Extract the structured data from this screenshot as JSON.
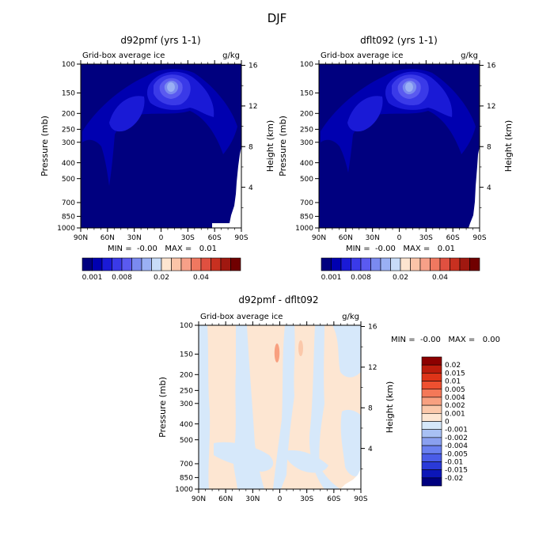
{
  "page": {
    "title": "DJF"
  },
  "axis_common": {
    "x_ticks": [
      "90N",
      "60N",
      "30N",
      "0",
      "30S",
      "60S",
      "90S"
    ],
    "p_ticks": [
      "100",
      "150",
      "200",
      "250",
      "300",
      "400",
      "500",
      "700",
      "850",
      "1000"
    ],
    "h_ticks": [
      "16",
      "12",
      "8",
      "4"
    ],
    "ylabel_left": "Pressure (mb)",
    "ylabel_right": "Height (km)"
  },
  "colors": {
    "abs_palette": [
      "#00007f",
      "#0000b0",
      "#1a1ad6",
      "#3a3ae8",
      "#5a5af0",
      "#7a8af0",
      "#9ab0f4",
      "#c8dcf8",
      "#fde5d0",
      "#fbc4a8",
      "#f7a088",
      "#f07860",
      "#e05040",
      "#c83020",
      "#a01810",
      "#700000"
    ],
    "diff_palette": [
      "#00007f",
      "#0c16b8",
      "#2a3ad8",
      "#4a5ce8",
      "#6a80f0",
      "#8aa0f0",
      "#a8c0f4",
      "#d6e8fa",
      "#fde6d2",
      "#fbc8aa",
      "#f8a080",
      "#f47858",
      "#ee5030",
      "#de3418",
      "#bc1c0c",
      "#8c0000"
    ]
  },
  "chart_data": [
    {
      "type": "heatmap",
      "title": "d92pmf (yrs 1-1)",
      "subtitle": "Grid-box average ice",
      "units": "g/kg",
      "stats": "MIN =  -0.00   MAX =   0.01",
      "colorbar_labels": [
        "0.001",
        "0.008",
        "0.02",
        "0.04"
      ]
    },
    {
      "type": "heatmap",
      "title": "dflt092 (yrs 1-1)",
      "subtitle": "Grid-box average ice",
      "units": "g/kg",
      "stats": "MIN =  -0.00   MAX =   0.01",
      "colorbar_labels": [
        "0.001",
        "0.008",
        "0.02",
        "0.04"
      ]
    },
    {
      "type": "heatmap",
      "title": "d92pmf - dflt092",
      "subtitle": "Grid-box average ice",
      "units": "g/kg",
      "stats": "MIN =  -0.00   MAX =   0.00",
      "legend_labels": [
        "0.02",
        "0.015",
        "0.01",
        "0.005",
        "0.004",
        "0.002",
        "0.001",
        "0",
        "-0.001",
        "-0.002",
        "-0.004",
        "-0.005",
        "-0.01",
        "-0.015",
        "-0.02"
      ]
    }
  ]
}
